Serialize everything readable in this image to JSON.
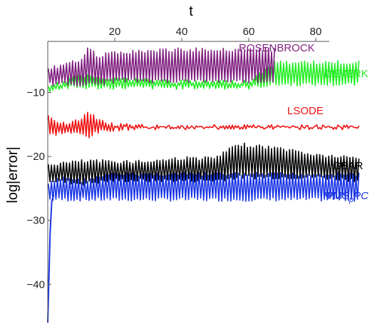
{
  "chart_data": {
    "type": "line",
    "title": "",
    "xlabel": "t",
    "ylabel": "log|error|",
    "xlim": [
      0,
      100
    ],
    "ylim": [
      -46,
      -2
    ],
    "x_ticks": [
      20,
      40,
      60,
      80
    ],
    "x_tick_labels": [
      "20",
      "40",
      "60",
      "80"
    ],
    "y_ticks": [
      -10,
      -20,
      -30,
      -40
    ],
    "y_tick_labels": [
      "−10",
      "−20",
      "−30",
      "−40"
    ],
    "x_axis_position": "top",
    "grid": false,
    "legend_placement": "labels beside each series on the right",
    "series": [
      {
        "name": "ROSENBROCK",
        "color": "#7f1f7f",
        "x_end": 68,
        "x": [
          0,
          5,
          10,
          12,
          15,
          20,
          30,
          40,
          50,
          60,
          68
        ],
        "y_upper": [
          -6,
          -5.5,
          -4.5,
          -2.5,
          -4,
          -3.5,
          -3.2,
          -3.0,
          -3.0,
          -3.0,
          -3.0
        ],
        "y_lower": [
          -9,
          -9,
          -9,
          -9,
          -9,
          -8.5,
          -8.5,
          -8.5,
          -8.5,
          -8.5,
          -8.5
        ]
      },
      {
        "name": "DEVERK",
        "color": "#22ee22",
        "x_end": 93,
        "x": [
          0,
          5,
          10,
          20,
          40,
          60,
          68,
          80,
          93
        ],
        "y_upper": [
          -9,
          -8,
          -7,
          -7.5,
          -8,
          -8,
          -5,
          -5,
          -5
        ],
        "y_lower": [
          -10,
          -9.5,
          -9.5,
          -9.5,
          -9.5,
          -9.5,
          -9,
          -9,
          -9
        ]
      },
      {
        "name": "LSODE",
        "color": "#ee1111",
        "x_end": 93,
        "x": [
          0,
          5,
          10,
          12,
          15,
          20,
          30,
          50,
          70,
          93
        ],
        "y_upper": [
          -13.5,
          -14.5,
          -14,
          -12.8,
          -14,
          -14.8,
          -15,
          -15,
          -15,
          -15
        ],
        "y_lower": [
          -17,
          -16.5,
          -16.8,
          -17.2,
          -16.5,
          -16,
          -15.8,
          -15.8,
          -15.8,
          -15.8
        ]
      },
      {
        "name": "GEAR",
        "color": "#000000",
        "x_end": 93,
        "x": [
          0,
          10,
          20,
          30,
          40,
          50,
          57,
          60,
          70,
          80,
          93
        ],
        "y_upper": [
          -21,
          -20.5,
          -20.5,
          -20.5,
          -20,
          -20,
          -17.8,
          -18,
          -18.5,
          -19.5,
          -20
        ],
        "y_lower": [
          -24,
          -24.5,
          -24,
          -24,
          -24,
          -24,
          -23.5,
          -23.5,
          -23.5,
          -23.5,
          -24
        ]
      },
      {
        "name": "ΨMS",
        "name_suffix": "PC",
        "name_subscript": "p",
        "color": "#1a35e6",
        "x_end": 93,
        "x": [
          0,
          5,
          10,
          20,
          40,
          60,
          80,
          93
        ],
        "y_upper": [
          -24,
          -23,
          -23.5,
          -22.5,
          -22.5,
          -22.5,
          -22.5,
          -22.5
        ],
        "y_lower": [
          -27,
          -27,
          -27,
          -27,
          -27,
          -27,
          -27,
          -27
        ],
        "transient": {
          "x": [
            0,
            0.3,
            0.7,
            1.2,
            1.8
          ],
          "y": [
            -46,
            -40,
            -32,
            -27,
            -26
          ]
        }
      }
    ]
  }
}
